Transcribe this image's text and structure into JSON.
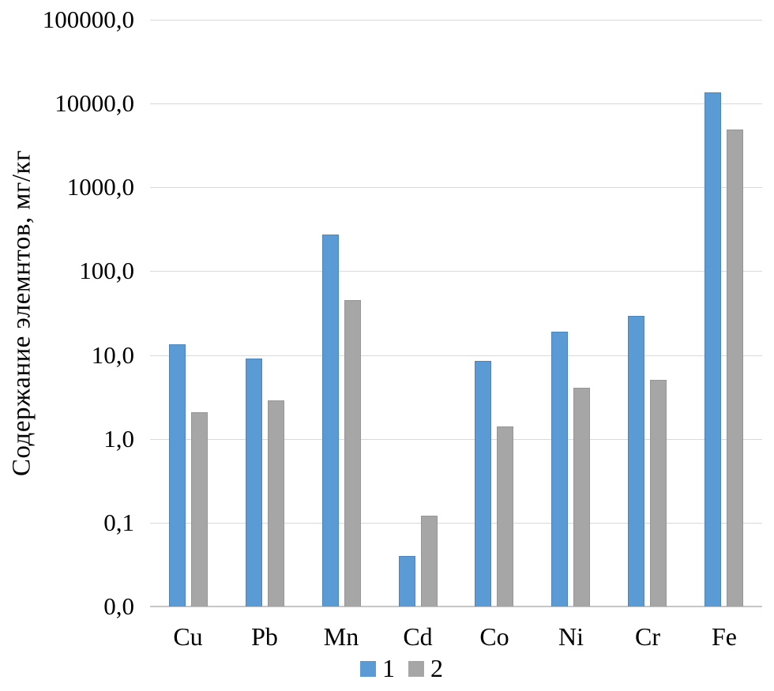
{
  "chart_data": {
    "type": "bar",
    "y_scale": "log10",
    "title": "",
    "xlabel": "",
    "ylabel": "Содержание элемнтов, мг/кг",
    "categories": [
      "Cu",
      "Pb",
      "Mn",
      "Cd",
      "Co",
      "Ni",
      "Cr",
      "Fe"
    ],
    "series": [
      {
        "name": "1",
        "color": "#5B9BD5",
        "border_color": "#4A85BD",
        "values": [
          13.5,
          9,
          275,
          0.04,
          8.5,
          19,
          29,
          13500
        ]
      },
      {
        "name": "2",
        "color": "#A6A6A6",
        "border_color": "#969696",
        "values": [
          2.1,
          2.9,
          45,
          0.12,
          1.4,
          4.1,
          5.1,
          4900
        ]
      }
    ],
    "y_ticks": [
      {
        "label": "100000,0",
        "value": 100000
      },
      {
        "label": "10000,0",
        "value": 10000
      },
      {
        "label": "1000,0",
        "value": 1000
      },
      {
        "label": "100,0",
        "value": 100
      },
      {
        "label": "10,0",
        "value": 10
      },
      {
        "label": "1,0",
        "value": 1
      },
      {
        "label": "0,1",
        "value": 0.1
      },
      {
        "label": "0,0",
        "value": 0.01
      }
    ],
    "ylim": [
      0.01,
      100000
    ],
    "grid": true,
    "legend_position": "bottom",
    "colors": {
      "gridline": "#D9D9D9",
      "baseline": "#C6C6C6",
      "text": "#000000",
      "background": "#FFFFFF"
    }
  }
}
